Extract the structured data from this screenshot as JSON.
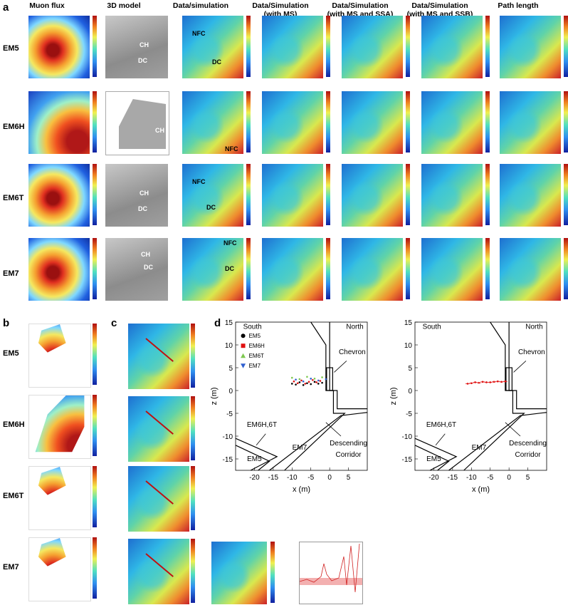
{
  "panels": {
    "a": "a",
    "b": "b",
    "c": "c",
    "d": "d"
  },
  "columns": [
    "Muon flux",
    "3D model",
    "Data/simulation",
    "Data/Simulation\n(with MS)",
    "Data/Simulation\n(with MS and SSA)",
    "Data/Simulation\n(with MS and SSB)",
    "Path length"
  ],
  "rows": [
    "EM5",
    "EM6H",
    "EM6T",
    "EM7"
  ],
  "annotations": {
    "ch": "CH",
    "dc": "DC",
    "nfc": "NFC"
  },
  "chart_d": {
    "south": "South",
    "north": "North",
    "chevron": "Chevron",
    "em6h6t": "EM6H,6T",
    "em5": "EM5",
    "em7": "EM7",
    "descending": "Descending",
    "corridor": "Corridor",
    "xlabel": "x (m)",
    "ylabel": "z (m)",
    "xticks": [
      "-20",
      "-15",
      "-10",
      "-5",
      "0",
      "5"
    ],
    "yticks": [
      "15",
      "10",
      "5",
      "0",
      "-5",
      "-10",
      "-15"
    ],
    "legend": [
      {
        "name": "EM5",
        "color": "#000000",
        "shape": "circle"
      },
      {
        "name": "EM6H",
        "color": "#e01010",
        "shape": "square"
      },
      {
        "name": "EM6T",
        "color": "#7ec850",
        "shape": "triangle-up"
      },
      {
        "name": "EM7",
        "color": "#3060d0",
        "shape": "triangle-down"
      }
    ]
  },
  "chart_data": [
    {
      "type": "scatter",
      "xlabel": "x (m)",
      "ylabel": "z (m)",
      "xlim": [
        -25,
        10
      ],
      "ylim": [
        -17.5,
        15
      ],
      "series": [
        {
          "name": "EM5",
          "color": "#000000",
          "x": [
            -10,
            -9,
            -8,
            -7,
            -6,
            -5,
            -4,
            -3,
            -2
          ],
          "y": [
            1.5,
            1.3,
            1.8,
            1.2,
            1.6,
            1.4,
            1.9,
            1.5,
            1.7
          ]
        },
        {
          "name": "EM6H",
          "color": "#e01010",
          "x": [
            -9.5,
            -8.5,
            -7.5,
            -6.5,
            -5.5,
            -4.5,
            -3.5,
            -2.5
          ],
          "y": [
            2.0,
            1.6,
            2.2,
            1.5,
            1.9,
            2.3,
            1.8,
            2.1
          ]
        },
        {
          "name": "EM6T",
          "color": "#7ec850",
          "x": [
            -10,
            -8,
            -6,
            -4,
            -2
          ],
          "y": [
            2.8,
            2.5,
            3.0,
            2.6,
            2.9
          ]
        },
        {
          "name": "EM7",
          "color": "#3060d0",
          "x": [
            -9,
            -7,
            -5,
            -3,
            -1
          ],
          "y": [
            2.4,
            2.0,
            2.6,
            2.2,
            2.5
          ]
        }
      ]
    },
    {
      "type": "scatter",
      "xlabel": "x (m)",
      "ylabel": "z (m)",
      "xlim": [
        -25,
        10
      ],
      "ylim": [
        -17.5,
        15
      ],
      "series": [
        {
          "name": "",
          "color": "#e01010",
          "x": [
            -11,
            -10,
            -9,
            -8,
            -7,
            -6,
            -5,
            -4,
            -3,
            -2,
            -1
          ],
          "y": [
            1.5,
            1.6,
            1.8,
            1.7,
            1.9,
            1.8,
            1.8,
            1.9,
            2.0,
            1.9,
            2.0
          ]
        }
      ]
    }
  ]
}
